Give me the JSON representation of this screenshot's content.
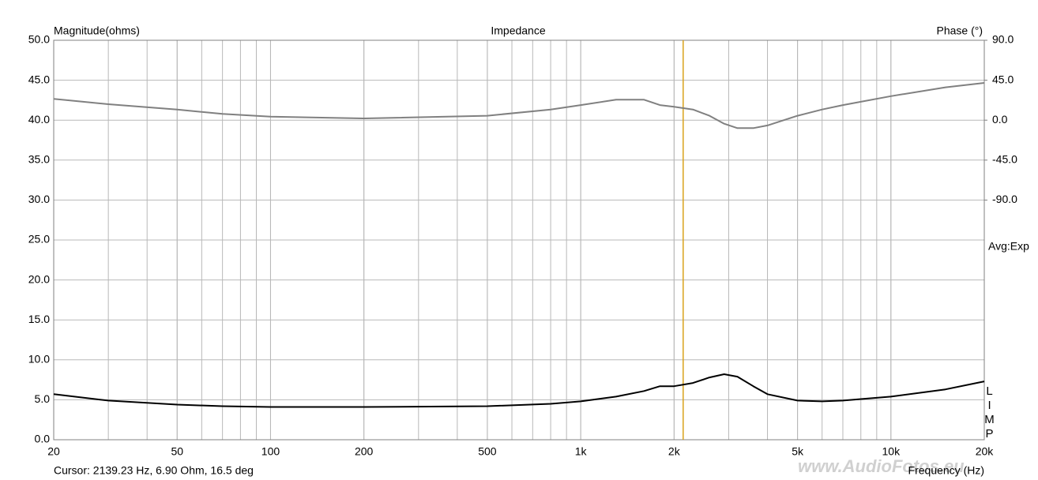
{
  "chart_data": {
    "type": "line",
    "title": "Impedance",
    "y_label": "Magnitude(ohms)",
    "y2_label": "Phase (°)",
    "x_label": "Frequency (Hz)",
    "averaging": "Avg:Exp",
    "trace_label": "LIMP",
    "cursor_text": "Cursor: 2139.23 Hz, 6.90 Ohm, 16.5 deg",
    "cursor_x": 2139.23,
    "cursor_color": "#d9a21b",
    "watermark": "www.AudioFotos.eu",
    "xscale": "log",
    "grid": true,
    "xlim": [
      20,
      20000
    ],
    "xticks": [
      20,
      50,
      100,
      200,
      500,
      {
        "value": 1000,
        "label": "1k"
      },
      {
        "value": 2000,
        "label": "2k"
      },
      {
        "value": 5000,
        "label": "5k"
      },
      {
        "value": 10000,
        "label": "10k"
      },
      {
        "value": 20000,
        "label": "20k"
      }
    ],
    "ylim": [
      0,
      50
    ],
    "yticks": [
      {
        "value": 0,
        "label": "0.0"
      },
      {
        "value": 5,
        "label": "5.0"
      },
      {
        "value": 10,
        "label": "10.0"
      },
      {
        "value": 15,
        "label": "15.0"
      },
      {
        "value": 20,
        "label": "20.0"
      },
      {
        "value": 25,
        "label": "25.0"
      },
      {
        "value": 30,
        "label": "30.0"
      },
      {
        "value": 35,
        "label": "35.0"
      },
      {
        "value": 40,
        "label": "40.0"
      },
      {
        "value": 45,
        "label": "45.0"
      },
      {
        "value": 50,
        "label": "50.0"
      }
    ],
    "y2lim": [
      -360,
      90
    ],
    "y2ticks": [
      {
        "value": 90,
        "label": "90.0"
      },
      {
        "value": 45,
        "label": "45.0"
      },
      {
        "value": 0,
        "label": "0.0"
      },
      {
        "value": -45,
        "label": "-45.0"
      },
      {
        "value": -90,
        "label": "-90.0"
      }
    ],
    "x": [
      20,
      30,
      50,
      70,
      100,
      200,
      500,
      800,
      1000,
      1300,
      1600,
      1800,
      2000,
      2300,
      2600,
      2900,
      3200,
      3600,
      4000,
      5000,
      6000,
      7000,
      10000,
      15000,
      20000
    ],
    "series": [
      {
        "name": "Magnitude",
        "color": "#000000",
        "values": [
          5.7,
          4.9,
          4.4,
          4.2,
          4.1,
          4.1,
          4.2,
          4.5,
          4.8,
          5.4,
          6.1,
          6.7,
          6.7,
          7.1,
          7.8,
          8.2,
          7.9,
          6.7,
          5.7,
          4.9,
          4.8,
          4.9,
          5.4,
          6.3,
          7.3
        ]
      },
      {
        "name": "Phase",
        "color": "#808080",
        "axis": "y2",
        "values": [
          24,
          18,
          12,
          7,
          4,
          2,
          5,
          12,
          17,
          23,
          23,
          17,
          15,
          12,
          5,
          -4,
          -9,
          -9,
          -6,
          5,
          12,
          17,
          27,
          37,
          42
        ]
      }
    ]
  }
}
